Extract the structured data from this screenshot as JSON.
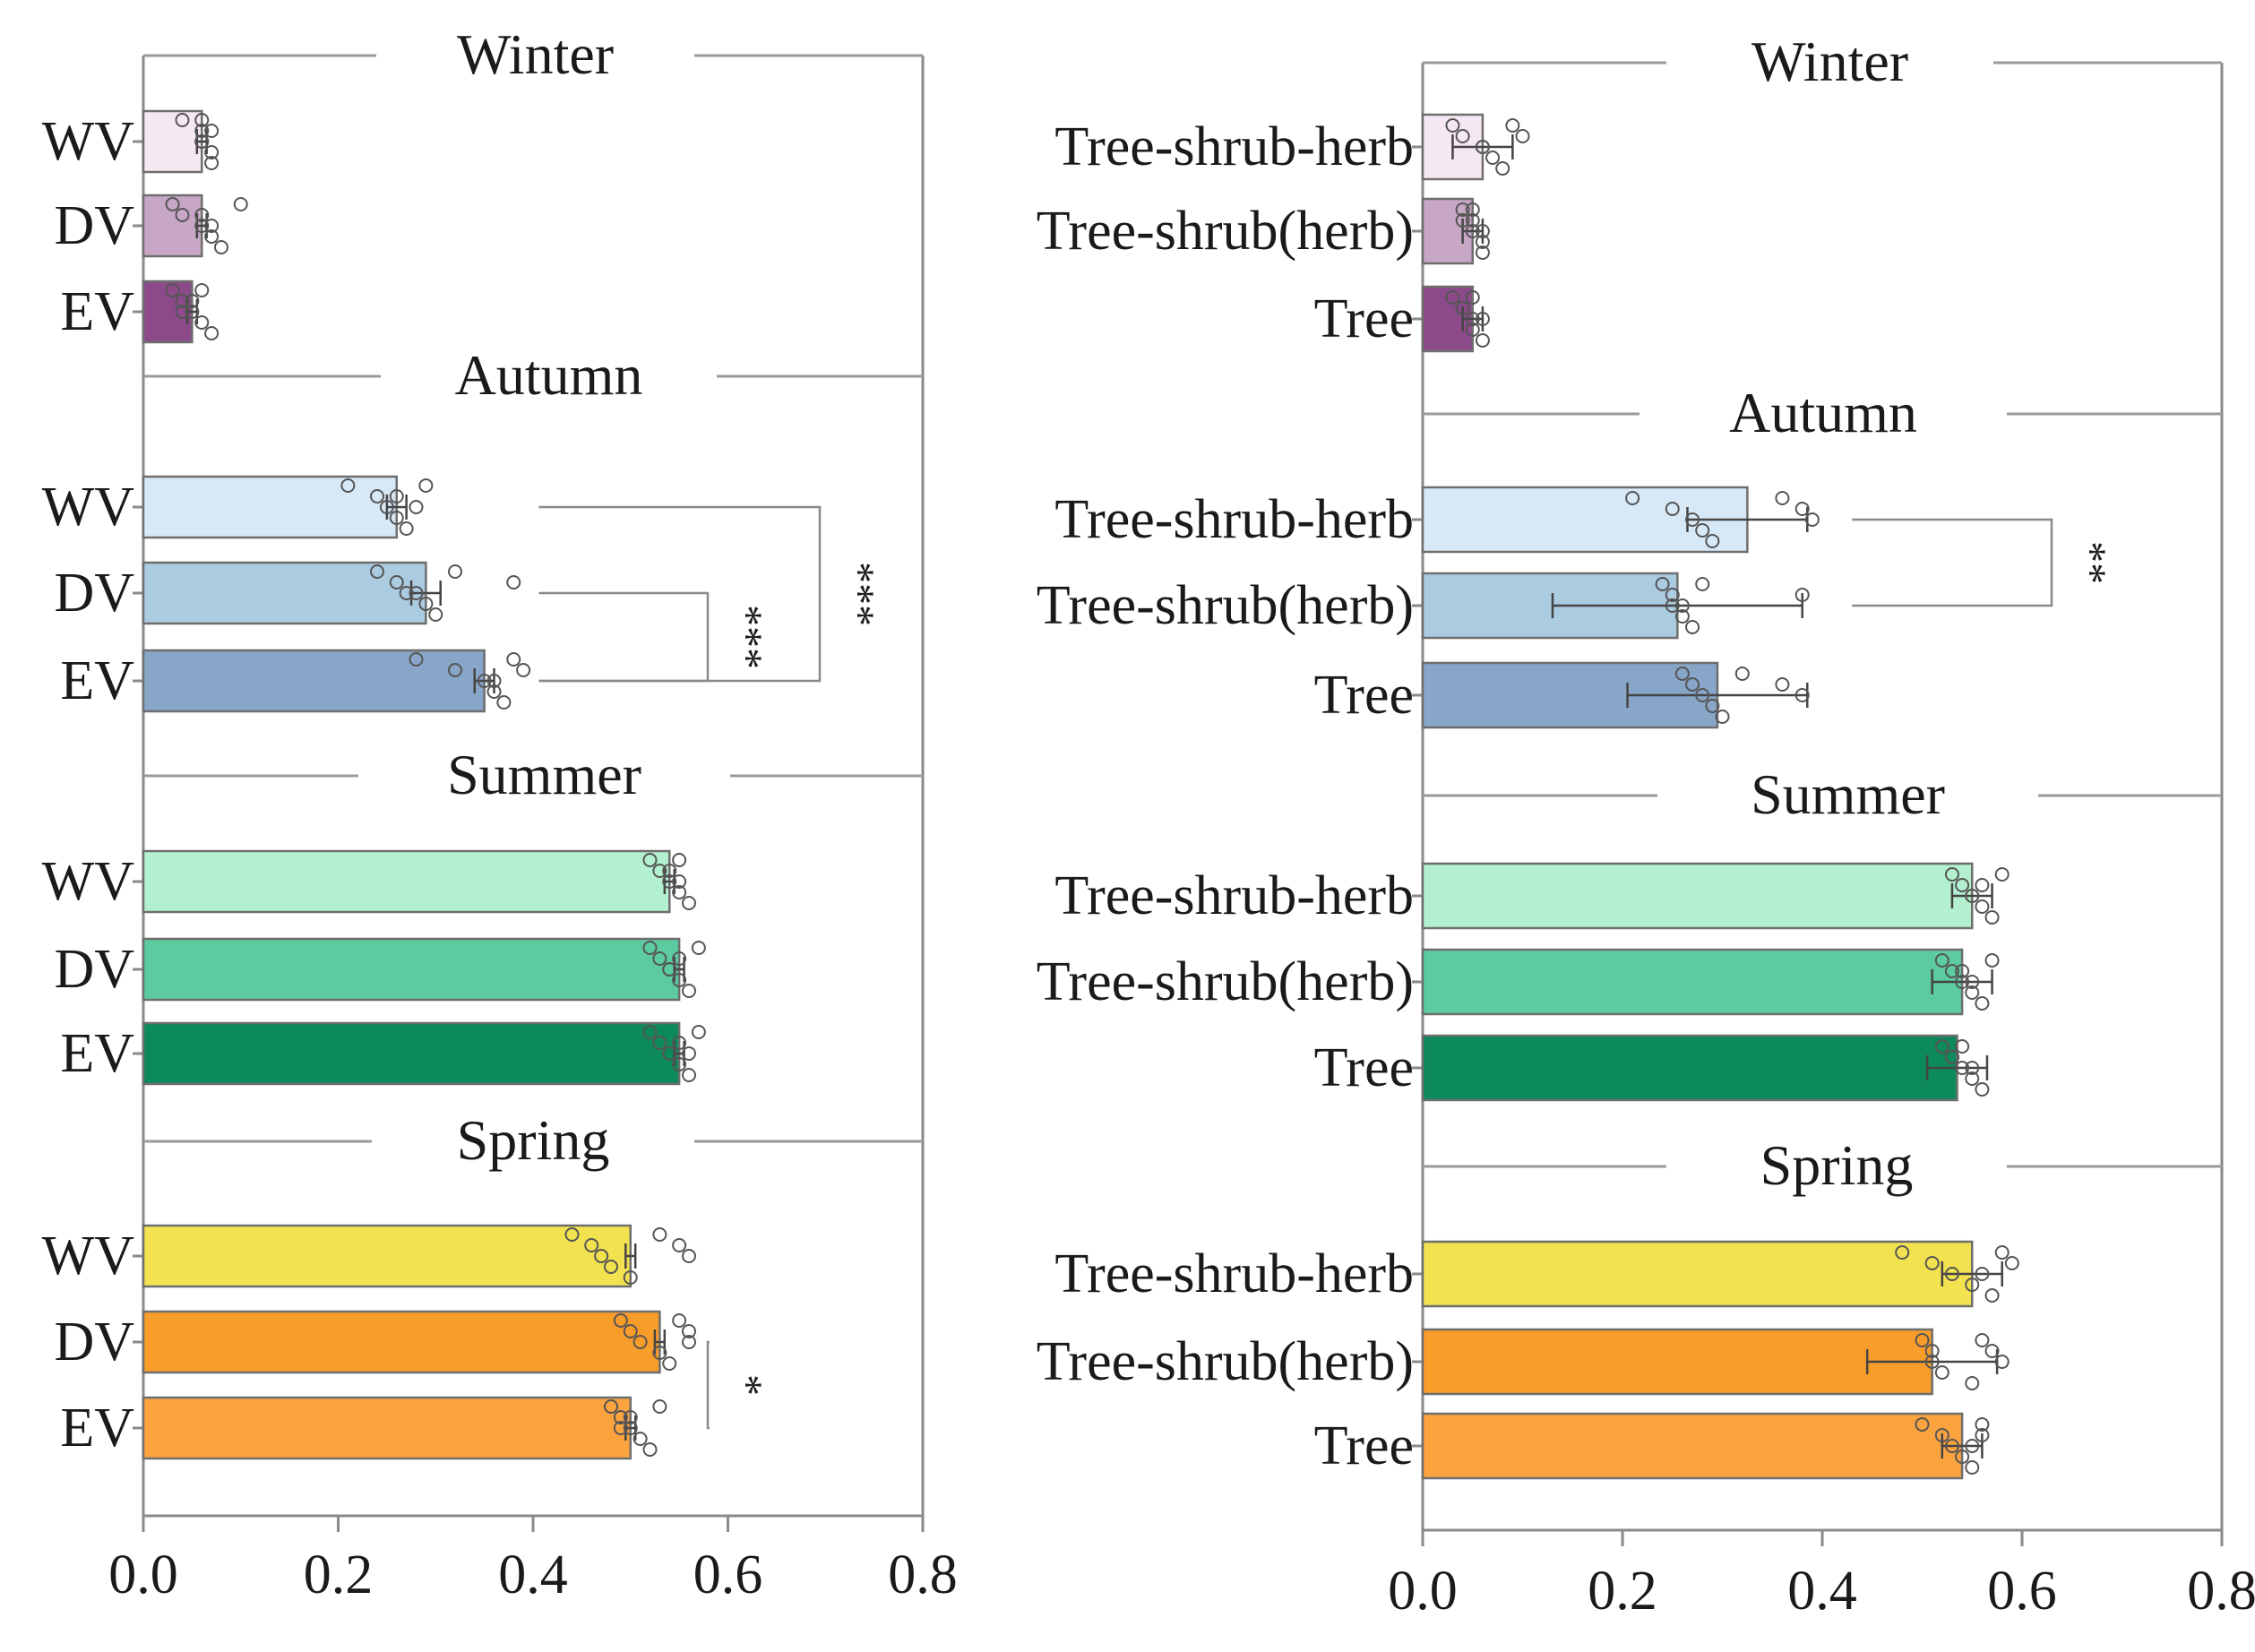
{
  "chart_data": [
    {
      "type": "bar",
      "orientation": "horizontal",
      "name": "left-panel",
      "xlim": [
        0,
        0.8
      ],
      "x_ticks": [
        "0.0",
        "0.2",
        "0.4",
        "0.6",
        "0.8"
      ],
      "x_tick_values": [
        0,
        0.2,
        0.4,
        0.6,
        0.8
      ],
      "categories": [
        "WV",
        "DV",
        "EV"
      ],
      "seasons": [
        {
          "name": "Winter",
          "colors": [
            "#f6e8f3",
            "#c8a6c6",
            "#8d4a8a"
          ],
          "values": [
            0.06,
            0.06,
            0.05
          ],
          "errors": [
            0.005,
            0.005,
            0.005
          ],
          "points": [
            [
              0.04,
              0.06,
              0.06,
              0.07,
              0.07,
              0.06,
              0.07,
              0.06
            ],
            [
              0.03,
              0.04,
              0.06,
              0.07,
              0.08,
              0.1,
              0.06,
              0.07
            ],
            [
              0.03,
              0.04,
              0.05,
              0.06,
              0.07,
              0.06,
              0.05,
              0.04
            ]
          ],
          "significance": []
        },
        {
          "name": "Autumn",
          "colors": [
            "#d7e8f6",
            "#abcbe0",
            "#87a6c8"
          ],
          "values": [
            0.26,
            0.29,
            0.35
          ],
          "errors": [
            0.01,
            0.015,
            0.01
          ],
          "points": [
            [
              0.21,
              0.24,
              0.25,
              0.26,
              0.27,
              0.29,
              0.26,
              0.28
            ],
            [
              0.24,
              0.26,
              0.27,
              0.29,
              0.3,
              0.32,
              0.38,
              0.28
            ],
            [
              0.28,
              0.32,
              0.35,
              0.36,
              0.37,
              0.38,
              0.39,
              0.36
            ]
          ],
          "significance": [
            {
              "from": "DV",
              "to": "EV",
              "label": "***"
            },
            {
              "from": "WV",
              "to": "EV",
              "label": "***"
            }
          ]
        },
        {
          "name": "Summer",
          "colors": [
            "#b3f0d0",
            "#5ccca0",
            "#0d8a5a"
          ],
          "values": [
            0.54,
            0.55,
            0.55
          ],
          "errors": [
            0.005,
            0.005,
            0.005
          ],
          "points": [
            [
              0.52,
              0.53,
              0.54,
              0.55,
              0.56,
              0.55,
              0.54,
              0.55
            ],
            [
              0.52,
              0.53,
              0.54,
              0.55,
              0.56,
              0.57,
              0.55,
              0.54
            ],
            [
              0.52,
              0.53,
              0.54,
              0.55,
              0.56,
              0.57,
              0.55,
              0.56
            ]
          ],
          "significance": []
        },
        {
          "name": "Spring",
          "colors": [
            "#f2e24f",
            "#f99d2a",
            "#fba33f"
          ],
          "values": [
            0.5,
            0.53,
            0.5
          ],
          "errors": [
            0.005,
            0.005,
            0.005
          ],
          "points": [
            [
              0.44,
              0.46,
              0.47,
              0.48,
              0.5,
              0.53,
              0.55,
              0.56
            ],
            [
              0.49,
              0.5,
              0.51,
              0.53,
              0.54,
              0.55,
              0.56,
              0.56
            ],
            [
              0.48,
              0.49,
              0.5,
              0.51,
              0.52,
              0.53,
              0.5,
              0.49
            ]
          ],
          "significance": [
            {
              "from": "DV",
              "to": "EV",
              "label": "*"
            }
          ]
        }
      ]
    },
    {
      "type": "bar",
      "orientation": "horizontal",
      "name": "right-panel",
      "xlim": [
        0,
        0.8
      ],
      "x_ticks": [
        "0.0",
        "0.2",
        "0.4",
        "0.6",
        "0.8"
      ],
      "x_tick_values": [
        0,
        0.2,
        0.4,
        0.6,
        0.8
      ],
      "categories": [
        "Tree-shrub-herb",
        "Tree-shrub(herb)",
        "Tree"
      ],
      "seasons": [
        {
          "name": "Winter",
          "colors": [
            "#f6e8f3",
            "#c8a6c6",
            "#8d4a8a"
          ],
          "values": [
            0.06,
            0.05,
            0.05
          ],
          "errors": [
            0.03,
            0.01,
            0.01
          ],
          "points": [
            [
              0.03,
              0.04,
              0.06,
              0.07,
              0.08,
              0.09,
              0.1,
              0.06
            ],
            [
              0.04,
              0.05,
              0.05,
              0.06,
              0.06,
              0.05,
              0.04,
              0.06
            ],
            [
              0.03,
              0.04,
              0.05,
              0.05,
              0.06,
              0.05,
              0.04,
              0.06
            ]
          ],
          "significance": []
        },
        {
          "name": "Autumn",
          "colors": [
            "#d7e8f6",
            "#abcbe0",
            "#87a6c8"
          ],
          "values": [
            0.325,
            0.255,
            0.295
          ],
          "errors": [
            0.06,
            0.125,
            0.09
          ],
          "points": [
            [
              0.21,
              0.25,
              0.27,
              0.28,
              0.29,
              0.36,
              0.38,
              0.39
            ],
            [
              0.24,
              0.25,
              0.26,
              0.26,
              0.27,
              0.28,
              0.38,
              0.25
            ],
            [
              0.26,
              0.27,
              0.28,
              0.29,
              0.3,
              0.32,
              0.36,
              0.38
            ]
          ],
          "significance": [
            {
              "from": "Tree-shrub-herb",
              "to": "Tree-shrub(herb)",
              "label": "**"
            }
          ]
        },
        {
          "name": "Summer",
          "colors": [
            "#b3f0d0",
            "#5ccca0",
            "#0d8a5a"
          ],
          "values": [
            0.55,
            0.54,
            0.535
          ],
          "errors": [
            0.02,
            0.03,
            0.03
          ],
          "points": [
            [
              0.53,
              0.54,
              0.55,
              0.56,
              0.57,
              0.58,
              0.56,
              0.55
            ],
            [
              0.52,
              0.53,
              0.54,
              0.55,
              0.56,
              0.57,
              0.54,
              0.55
            ],
            [
              0.52,
              0.53,
              0.54,
              0.55,
              0.56,
              0.54,
              0.53,
              0.55
            ]
          ],
          "significance": []
        },
        {
          "name": "Spring",
          "colors": [
            "#f2e24f",
            "#f99d2a",
            "#fba33f"
          ],
          "values": [
            0.55,
            0.51,
            0.54
          ],
          "errors": [
            0.03,
            0.065,
            0.02
          ],
          "points": [
            [
              0.48,
              0.51,
              0.53,
              0.55,
              0.57,
              0.58,
              0.59,
              0.56
            ],
            [
              0.5,
              0.51,
              0.51,
              0.52,
              0.55,
              0.56,
              0.57,
              0.58
            ],
            [
              0.5,
              0.52,
              0.53,
              0.54,
              0.55,
              0.56,
              0.56,
              0.55
            ]
          ],
          "significance": []
        }
      ]
    }
  ]
}
